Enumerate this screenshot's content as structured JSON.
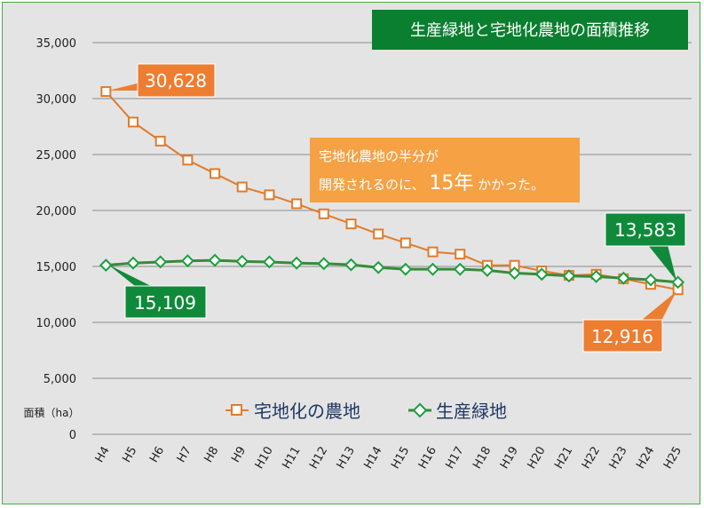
{
  "chart_data": {
    "type": "line",
    "title": "生産緑地と宅地化農地の面積推移",
    "ylabel": "面積（ha）",
    "xlabel": "",
    "ylim": [
      0,
      35000
    ],
    "yticks": [
      "0",
      "5,000",
      "10,000",
      "15,000",
      "20,000",
      "25,000",
      "30,000",
      "35,000"
    ],
    "grid": "horizontal",
    "legend_position": "bottom-center",
    "categories": [
      "H4",
      "H5",
      "H6",
      "H7",
      "H8",
      "H9",
      "H10",
      "H11",
      "H12",
      "H13",
      "H14",
      "H15",
      "H16",
      "H17",
      "H18",
      "H19",
      "H20",
      "H21",
      "H22",
      "H23",
      "H24",
      "H25"
    ],
    "series": [
      {
        "name": "宅地化の農地",
        "marker": "square",
        "color": "#e07b2c",
        "values": [
          30628,
          27900,
          26200,
          24500,
          23300,
          22100,
          21400,
          20600,
          19700,
          18800,
          17900,
          17100,
          16300,
          16100,
          15100,
          15100,
          14600,
          14200,
          14300,
          13900,
          13400,
          12916
        ]
      },
      {
        "name": "生産緑地",
        "marker": "diamond",
        "color": "#3a8a3a",
        "values": [
          15109,
          15300,
          15400,
          15500,
          15550,
          15450,
          15400,
          15300,
          15250,
          15150,
          14900,
          14750,
          14750,
          14750,
          14650,
          14400,
          14300,
          14150,
          14100,
          13950,
          13800,
          13583
        ]
      }
    ],
    "annotations": {
      "start_orange": "30,628",
      "start_green": "15,109",
      "end_green": "13,583",
      "end_orange": "12,916",
      "note_line1": "宅地化農地の半分が",
      "note_line2_pre": "開発されるのに、",
      "note_line2_big": "15年",
      "note_line2_post": "かかった。"
    },
    "colors": {
      "title_bg": "#0a7f2f",
      "orange_callout": "#ed7d31",
      "green_callout": "#0f8a3a",
      "note_bg": "#f5a144",
      "plot_bg": "#e4e4e4",
      "legend_text": "#1f3864"
    }
  }
}
